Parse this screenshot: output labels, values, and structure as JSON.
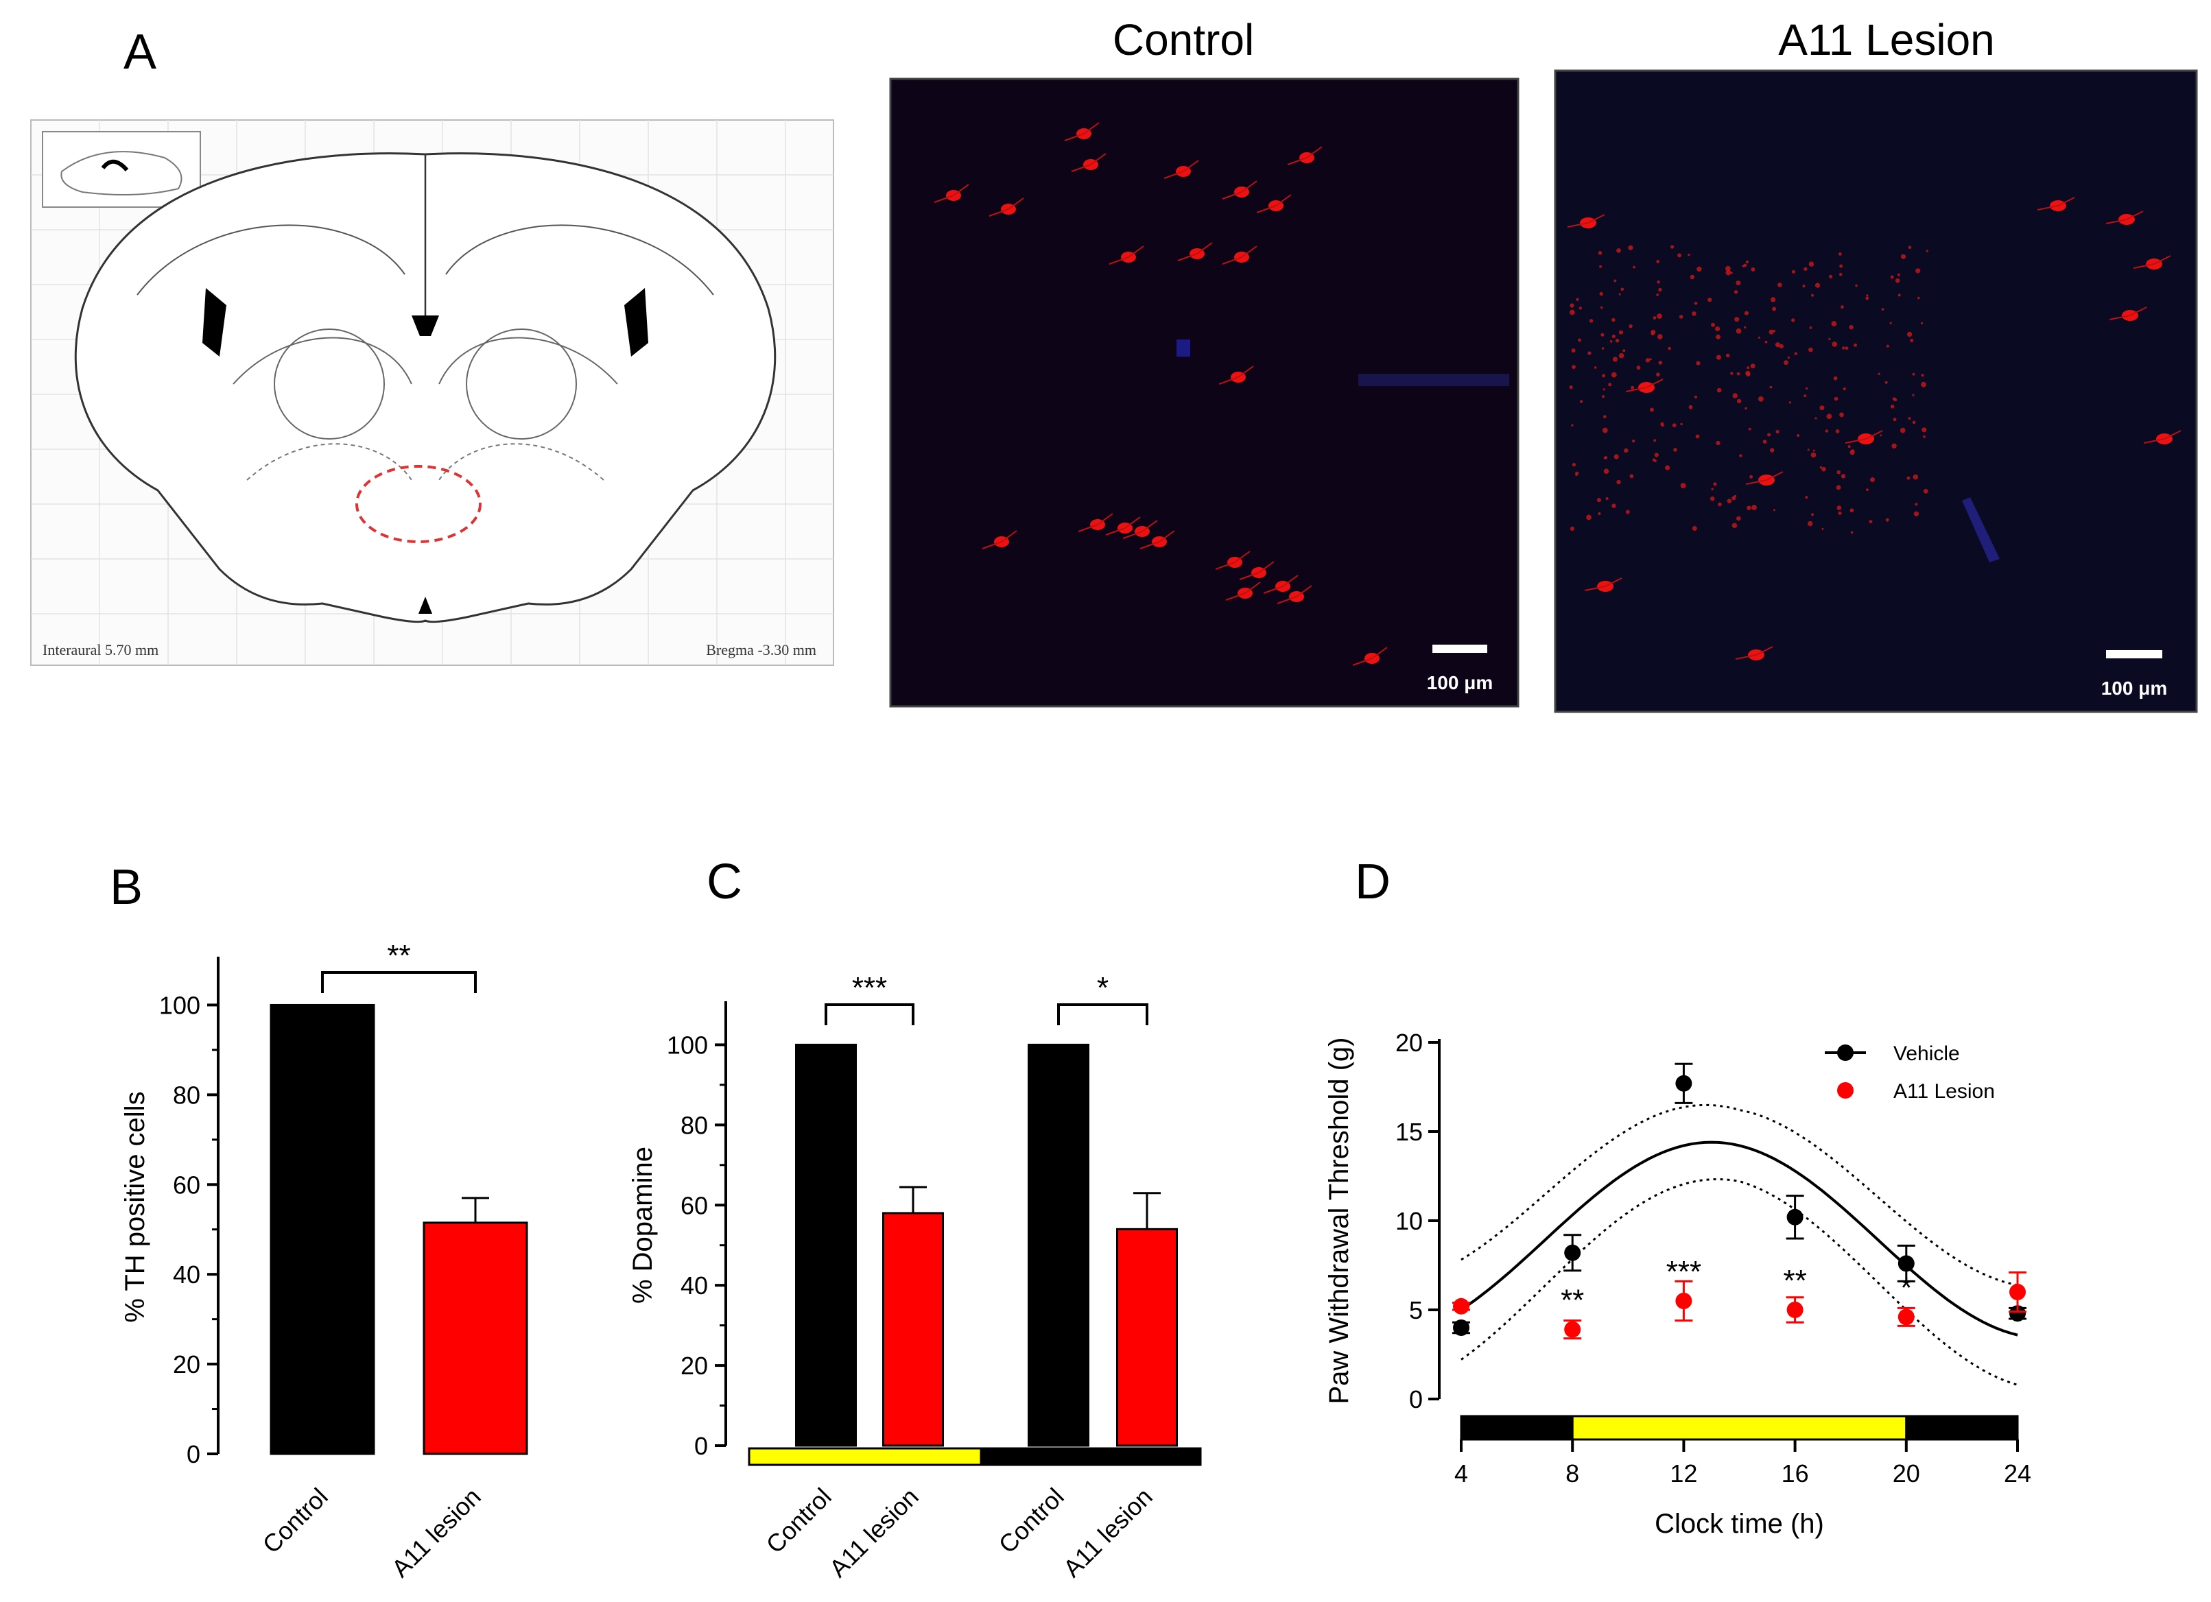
{
  "panel_a": {
    "letter": "A",
    "atlas": {
      "left_caption": "Interaural 5.70 mm",
      "right_caption": "Bregma -3.30 mm"
    },
    "images": [
      {
        "title": "Control",
        "scale_label": "100 μm"
      },
      {
        "title": "A11 Lesion",
        "scale_label": "100 μm"
      }
    ]
  },
  "colors": {
    "control": "#000000",
    "lesion": "#ff0000",
    "light_phase": "#ffff00",
    "dark_phase": "#000000"
  },
  "chart_data": [
    {
      "panel": "B",
      "type": "bar",
      "ylabel": "% TH positive cells",
      "ylim": [
        0,
        110
      ],
      "yticks": [
        0,
        20,
        40,
        60,
        80,
        100
      ],
      "categories": [
        "Control",
        "A11 lesion"
      ],
      "values": [
        100,
        51.5
      ],
      "errors": [
        0,
        5.5
      ],
      "colors": [
        "#000000",
        "#ff0000"
      ],
      "significance": [
        {
          "from": 0,
          "to": 1,
          "label": "**"
        }
      ]
    },
    {
      "panel": "C",
      "type": "bar",
      "ylabel": "% Dopamine",
      "ylim": [
        0,
        110
      ],
      "yticks": [
        0,
        20,
        40,
        60,
        80,
        100
      ],
      "categories": [
        "Control",
        "A11 lesion",
        "Control",
        "A11 lesion"
      ],
      "values": [
        100,
        58,
        100,
        54
      ],
      "errors": [
        0,
        6.5,
        0,
        9
      ],
      "colors": [
        "#000000",
        "#ff0000",
        "#000000",
        "#ff0000"
      ],
      "phase_bar": [
        "#ffff00",
        "#000000"
      ],
      "significance": [
        {
          "from": 0,
          "to": 1,
          "label": "***"
        },
        {
          "from": 2,
          "to": 3,
          "label": "*"
        }
      ]
    },
    {
      "panel": "D",
      "type": "scatter",
      "xlabel": "Clock time (h)",
      "ylabel": "Paw Withdrawal Threshold (g)",
      "xlim": [
        4,
        24
      ],
      "ylim": [
        0,
        20
      ],
      "xticks": [
        4,
        8,
        12,
        16,
        20,
        24
      ],
      "yticks": [
        0,
        5,
        10,
        15,
        20
      ],
      "series": [
        {
          "name": "Vehicle",
          "color": "#000000",
          "x": [
            4,
            8,
            12,
            16,
            20,
            24
          ],
          "y": [
            4.0,
            8.2,
            17.7,
            10.2,
            7.6,
            4.8
          ],
          "err": [
            0.3,
            1.0,
            1.1,
            1.2,
            1.0,
            0.3
          ]
        },
        {
          "name": "A11 Lesion",
          "color": "#ff0000",
          "x": [
            4,
            8,
            12,
            16,
            20,
            24
          ],
          "y": [
            5.2,
            3.9,
            5.5,
            5.0,
            4.6,
            6.0
          ],
          "err": [
            0.2,
            0.5,
            1.1,
            0.7,
            0.5,
            1.1
          ]
        }
      ],
      "fit": {
        "series": "Vehicle",
        "mesor": 8.9,
        "amplitude": 5.5,
        "peak_h": 13,
        "period_h": 24,
        "ci_halfwidth": 2.0
      },
      "significance": [
        {
          "x": 8,
          "label": "**"
        },
        {
          "x": 12,
          "label": "***"
        },
        {
          "x": 16,
          "label": "**"
        },
        {
          "x": 20,
          "label": "*"
        }
      ],
      "phase_bar": [
        {
          "from": 4,
          "to": 8,
          "color": "#000000"
        },
        {
          "from": 8,
          "to": 20,
          "color": "#ffff00"
        },
        {
          "from": 20,
          "to": 24,
          "color": "#000000"
        }
      ]
    }
  ]
}
